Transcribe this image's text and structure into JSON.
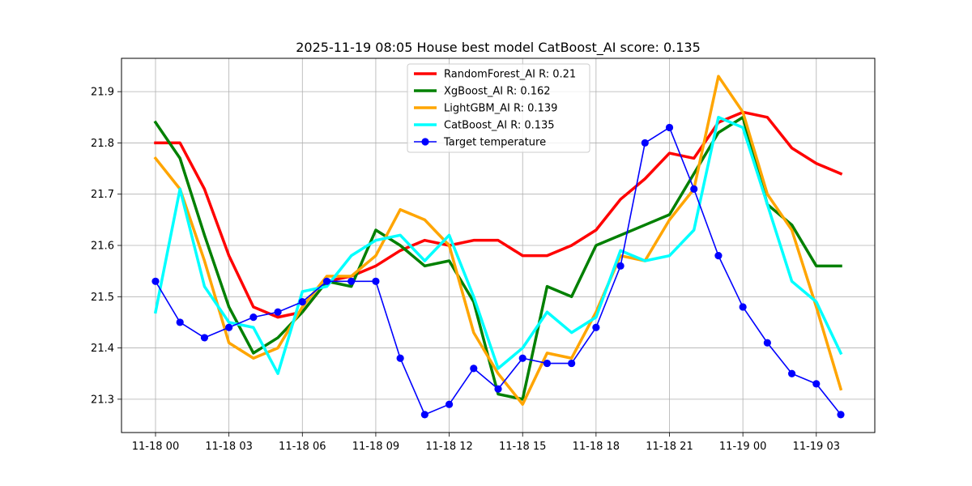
{
  "chart_data": {
    "type": "line",
    "title": "2025-11-19 08:05 House best model CatBoost_AI score: 0.135",
    "xlabel": "",
    "ylabel": "",
    "x": [
      "11-18 00",
      "11-18 01",
      "11-18 02",
      "11-18 03",
      "11-18 04",
      "11-18 05",
      "11-18 06",
      "11-18 07",
      "11-18 08",
      "11-18 09",
      "11-18 10",
      "11-18 11",
      "11-18 12",
      "11-18 13",
      "11-18 14",
      "11-18 15",
      "11-18 16",
      "11-18 17",
      "11-18 18",
      "11-18 19",
      "11-18 20",
      "11-18 21",
      "11-18 22",
      "11-18 23",
      "11-19 00",
      "11-19 01",
      "11-19 02",
      "11-19 03",
      "11-19 04"
    ],
    "xticks": [
      "11-18 00",
      "11-18 03",
      "11-18 06",
      "11-18 09",
      "11-18 12",
      "11-18 15",
      "11-18 18",
      "11-18 21",
      "11-19 00",
      "11-19 03"
    ],
    "yticks": [
      "21.3",
      "21.4",
      "21.5",
      "21.6",
      "21.7",
      "21.8",
      "21.9"
    ],
    "ylim": [
      21.235,
      21.965
    ],
    "xlim": [
      "11-17 23:22",
      "11-19 05:15"
    ],
    "grid": true,
    "legend_position": "top-center",
    "series": [
      {
        "name": "RandomForest_AI R: 0.21",
        "color": "#ff0000",
        "marker": "none",
        "values": [
          21.8,
          21.8,
          21.71,
          21.58,
          21.48,
          21.46,
          21.47,
          21.53,
          21.54,
          21.56,
          21.59,
          21.61,
          21.6,
          21.61,
          21.61,
          21.58,
          21.58,
          21.6,
          21.63,
          21.69,
          21.73,
          21.78,
          21.77,
          21.84,
          21.86,
          21.85,
          21.79,
          21.76,
          21.74
        ]
      },
      {
        "name": "XgBoost_AI R: 0.162",
        "color": "#008000",
        "marker": "none",
        "values": [
          21.84,
          21.77,
          21.62,
          21.48,
          21.39,
          21.42,
          21.47,
          21.53,
          21.52,
          21.63,
          21.6,
          21.56,
          21.57,
          21.49,
          21.31,
          21.3,
          21.52,
          21.5,
          21.6,
          21.62,
          21.64,
          21.66,
          21.74,
          21.82,
          21.85,
          21.68,
          21.64,
          21.56,
          21.56
        ]
      },
      {
        "name": "LightGBM_AI R: 0.139",
        "color": "#ffa500",
        "marker": "none",
        "values": [
          21.77,
          21.71,
          21.57,
          21.41,
          21.38,
          21.4,
          21.48,
          21.54,
          21.54,
          21.58,
          21.67,
          21.65,
          21.6,
          21.43,
          21.35,
          21.29,
          21.39,
          21.38,
          21.47,
          21.58,
          21.57,
          21.65,
          21.71,
          21.93,
          21.86,
          21.7,
          21.63,
          21.48,
          21.32
        ]
      },
      {
        "name": "CatBoost_AI R: 0.135",
        "color": "#00ffff",
        "marker": "none",
        "values": [
          21.47,
          21.71,
          21.52,
          21.45,
          21.44,
          21.35,
          21.51,
          21.52,
          21.58,
          21.61,
          21.62,
          21.57,
          21.62,
          21.5,
          21.36,
          21.4,
          21.47,
          21.43,
          21.46,
          21.59,
          21.57,
          21.58,
          21.63,
          21.85,
          21.83,
          21.68,
          21.53,
          21.49,
          21.39
        ]
      },
      {
        "name": "Target temperature",
        "color": "#0000ff",
        "marker": "circle",
        "values": [
          21.53,
          21.45,
          21.42,
          21.44,
          21.46,
          21.47,
          21.49,
          21.53,
          21.53,
          21.53,
          21.38,
          21.27,
          21.29,
          21.36,
          21.32,
          21.38,
          21.37,
          21.37,
          21.44,
          21.56,
          21.8,
          21.83,
          21.71,
          21.58,
          21.48,
          21.41,
          21.35,
          21.33,
          21.27
        ]
      }
    ]
  }
}
